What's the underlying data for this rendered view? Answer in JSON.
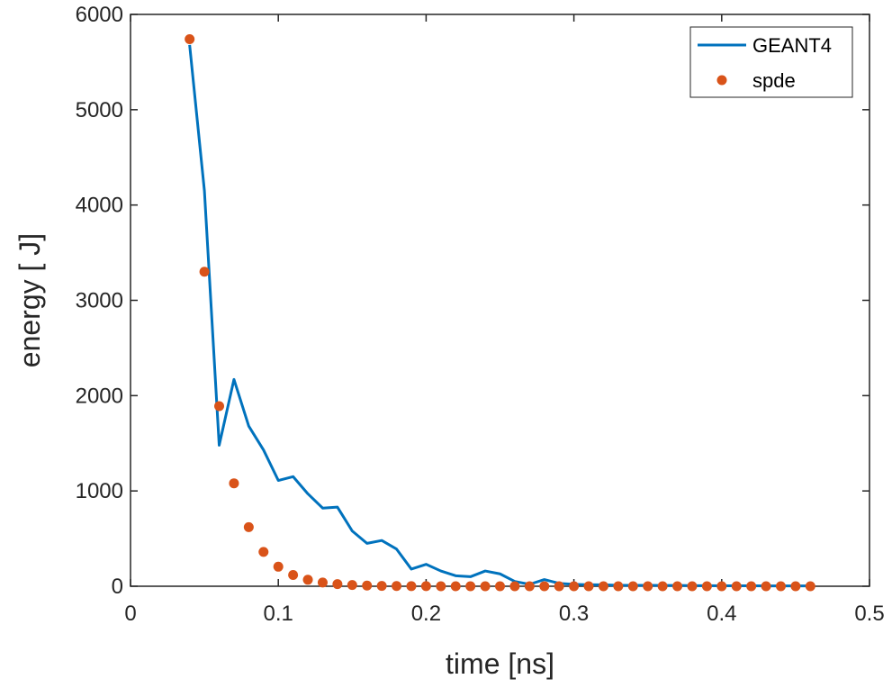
{
  "chart_data": {
    "type": "line",
    "title": "",
    "xlabel": "time [ns]",
    "ylabel": "energy [ J]",
    "xlim": [
      0,
      0.5
    ],
    "ylim": [
      0,
      6000
    ],
    "xticks": [
      0,
      0.1,
      0.2,
      0.3,
      0.4,
      0.5
    ],
    "xtick_labels": [
      "0",
      "0.1",
      "0.2",
      "0.3",
      "0.4",
      "0.5"
    ],
    "yticks": [
      0,
      1000,
      2000,
      3000,
      4000,
      5000,
      6000
    ],
    "ytick_labels": [
      "0",
      "1000",
      "2000",
      "3000",
      "4000",
      "5000",
      "6000"
    ],
    "grid": false,
    "legend_position": "top-right",
    "series": [
      {
        "name": "GEANT4",
        "style": "line",
        "color": "#0072BD",
        "x": [
          0.04,
          0.05,
          0.06,
          0.07,
          0.08,
          0.09,
          0.1,
          0.11,
          0.12,
          0.13,
          0.14,
          0.15,
          0.16,
          0.17,
          0.18,
          0.19,
          0.2,
          0.21,
          0.22,
          0.23,
          0.24,
          0.25,
          0.26,
          0.27,
          0.28,
          0.29,
          0.3,
          0.31,
          0.32,
          0.33,
          0.34,
          0.35,
          0.36,
          0.37,
          0.38,
          0.39,
          0.4,
          0.41,
          0.42,
          0.43,
          0.44,
          0.45,
          0.46
        ],
        "y": [
          5680,
          4150,
          1480,
          2170,
          1680,
          1430,
          1110,
          1150,
          970,
          820,
          830,
          580,
          450,
          480,
          390,
          180,
          230,
          160,
          110,
          100,
          160,
          130,
          50,
          20,
          70,
          30,
          20,
          15,
          15,
          10,
          10,
          10,
          8,
          8,
          6,
          6,
          5,
          5,
          5,
          4,
          4,
          3,
          3
        ]
      },
      {
        "name": "spde",
        "style": "scatter",
        "color": "#D95319",
        "x": [
          0.04,
          0.05,
          0.06,
          0.07,
          0.08,
          0.09,
          0.1,
          0.11,
          0.12,
          0.13,
          0.14,
          0.15,
          0.16,
          0.17,
          0.18,
          0.19,
          0.2,
          0.21,
          0.22,
          0.23,
          0.24,
          0.25,
          0.26,
          0.27,
          0.28,
          0.29,
          0.3,
          0.31,
          0.32,
          0.33,
          0.34,
          0.35,
          0.36,
          0.37,
          0.38,
          0.39,
          0.4,
          0.41,
          0.42,
          0.43,
          0.44,
          0.45,
          0.46
        ],
        "y": [
          5740,
          3300,
          1890,
          1080,
          620,
          360,
          205,
          118,
          68,
          39,
          22,
          13,
          7,
          4,
          2,
          1,
          1,
          0,
          0,
          0,
          0,
          0,
          0,
          0,
          0,
          0,
          0,
          0,
          0,
          0,
          0,
          0,
          0,
          0,
          0,
          0,
          0,
          0,
          0,
          0,
          0,
          0,
          0
        ]
      }
    ]
  }
}
